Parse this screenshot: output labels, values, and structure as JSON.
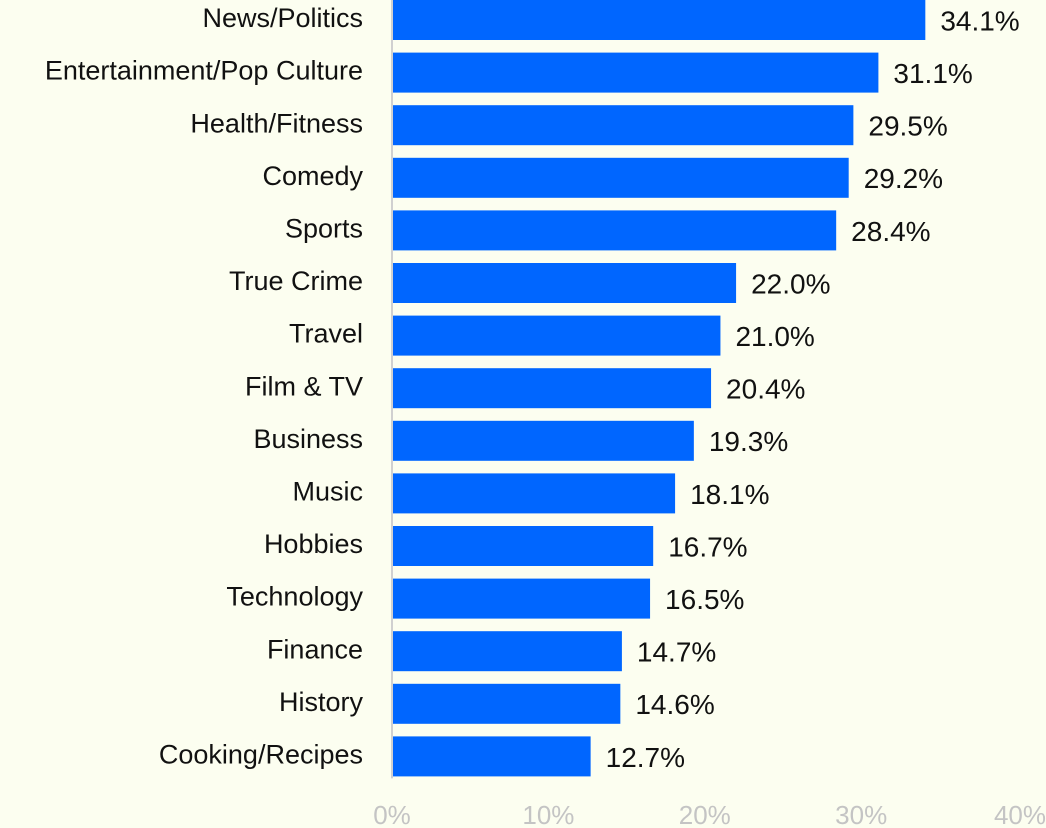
{
  "chart_data": {
    "type": "bar",
    "orientation": "horizontal",
    "categories": [
      "News/Politics",
      "Entertainment/Pop Culture",
      "Health/Fitness",
      "Comedy",
      "Sports",
      "True Crime",
      "Travel",
      "Film & TV",
      "Business",
      "Music",
      "Hobbies",
      "Technology",
      "Finance",
      "History",
      "Cooking/Recipes"
    ],
    "values": [
      34.1,
      31.1,
      29.5,
      29.2,
      28.4,
      22.0,
      21.0,
      20.4,
      19.3,
      18.1,
      16.7,
      16.5,
      14.7,
      14.6,
      12.7
    ],
    "value_labels": [
      "34.1%",
      "31.1%",
      "29.5%",
      "29.2%",
      "28.4%",
      "22.0%",
      "21.0%",
      "20.4%",
      "19.3%",
      "18.1%",
      "16.7%",
      "16.5%",
      "14.7%",
      "14.6%",
      "12.7%"
    ],
    "xlim": [
      0,
      40
    ],
    "x_ticks": [
      0,
      10,
      20,
      30,
      40
    ],
    "x_tick_labels": [
      "0%",
      "10%",
      "20%",
      "30%",
      "40%"
    ],
    "title": "",
    "xlabel": "",
    "ylabel": "",
    "grid": false,
    "bar_color": "#0066ff",
    "background_color": "#fcfef0",
    "axis_color": "#d0d0d0"
  }
}
